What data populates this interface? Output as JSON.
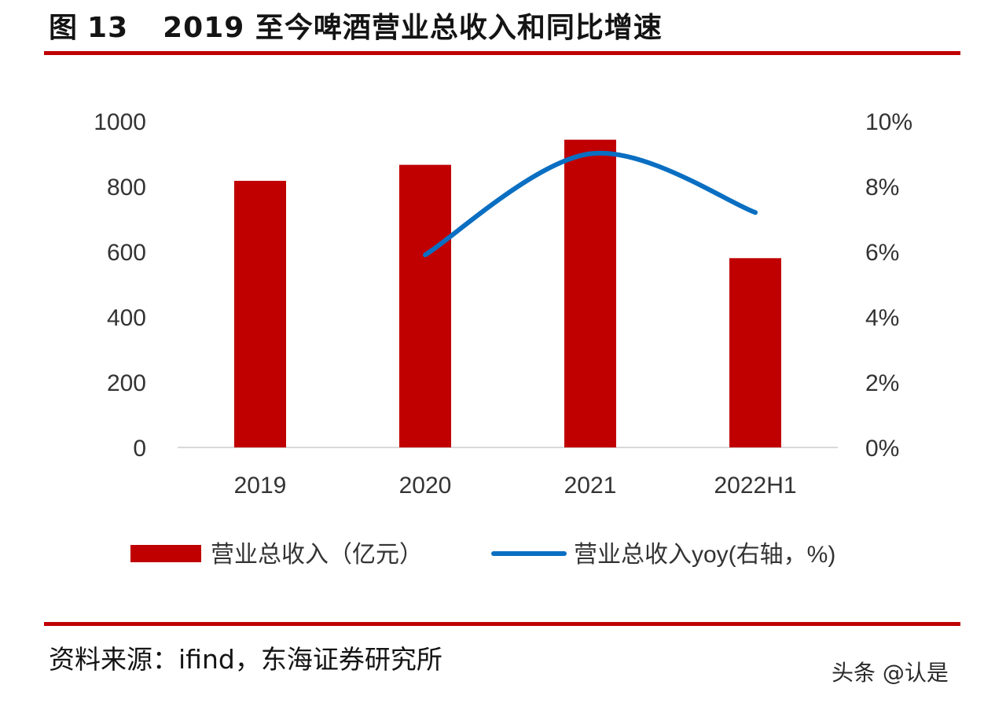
{
  "figure": {
    "label": "图",
    "number": "13",
    "title": "2019 至今啤酒营业总收入和同比增速"
  },
  "source": "资料来源：ifind，东海证券研究所",
  "watermark": "头条 @认是",
  "colors": {
    "bar": "#c00000",
    "line": "#0a6fc2",
    "rule": "#c00000",
    "axis": "#d9d9d9",
    "text": "#595959"
  },
  "chart_data": {
    "type": "bar",
    "categories": [
      "2019",
      "2020",
      "2021",
      "2022H1"
    ],
    "series": [
      {
        "name": "营业总收入（亿元）",
        "type": "bar",
        "axis": "left",
        "values": [
          817,
          866,
          943,
          580
        ]
      },
      {
        "name": "营业总收入yoy(右轴，%)",
        "type": "line",
        "axis": "right",
        "smooth": true,
        "values": [
          null,
          5.9,
          9.0,
          7.2
        ]
      }
    ],
    "y_left": {
      "min": 0,
      "max": 1000,
      "step": 200,
      "ticks": [
        "0",
        "200",
        "400",
        "600",
        "800",
        "1000"
      ]
    },
    "y_right": {
      "min": 0,
      "max": 10,
      "step": 2,
      "ticks": [
        "0%",
        "2%",
        "4%",
        "6%",
        "8%",
        "10%"
      ]
    },
    "grid": false,
    "legend_position": "bottom"
  }
}
